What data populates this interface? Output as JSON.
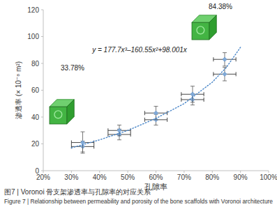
{
  "chart_data": {
    "type": "scatter",
    "title": "图7 | Voronoi 骨支架渗透率与孔隙率的对应关系",
    "subtitle": "Figure 7 | Relationship between permeability and porosity of the bone scaffolds with Voronoi architecture",
    "xlabel": "孔隙率",
    "ylabel": "渗透率 (× 10⁻⁸ m²)",
    "annotations": [
      "33.78%",
      "84.38%",
      "y = 177.7x³–160.55x²+98.001x"
    ],
    "series": [
      {
        "type": "scatter",
        "color": "#7fa9d8",
        "marker": "diamond",
        "x": [
          34,
          34,
          47,
          47,
          60,
          60,
          73,
          73,
          84.4,
          84.4
        ],
        "values": [
          18,
          21,
          27,
          30,
          38,
          43,
          53,
          57,
          72,
          83
        ],
        "x_error": [
          4,
          4,
          4,
          4,
          4,
          4,
          4,
          4,
          4,
          4
        ],
        "y_error": [
          4,
          8,
          4,
          4,
          4,
          5,
          4,
          6,
          5,
          5
        ]
      },
      {
        "type": "line",
        "color": "#4a86c8",
        "line_style": "dotted",
        "x": [
          30,
          40,
          50,
          60,
          70,
          80,
          85,
          90
        ],
        "values": [
          17,
          23,
          30,
          39,
          50,
          66,
          77,
          92
        ]
      }
    ],
    "xlim": [
      20,
      100
    ],
    "xticks": [
      {
        "value": 20,
        "label": "20%"
      },
      {
        "value": 30,
        "label": "30%"
      },
      {
        "value": 40,
        "label": "40%"
      },
      {
        "value": 50,
        "label": "50%"
      },
      {
        "value": 60,
        "label": "60%"
      },
      {
        "value": 70,
        "label": "70%"
      },
      {
        "value": 80,
        "label": "80%"
      },
      {
        "value": 90,
        "label": "90%"
      },
      {
        "value": 100,
        "label": "100%"
      }
    ],
    "ylim": [
      0,
      120
    ],
    "yticks": [
      0,
      20,
      40,
      60,
      80,
      100,
      120
    ],
    "grid": false
  }
}
